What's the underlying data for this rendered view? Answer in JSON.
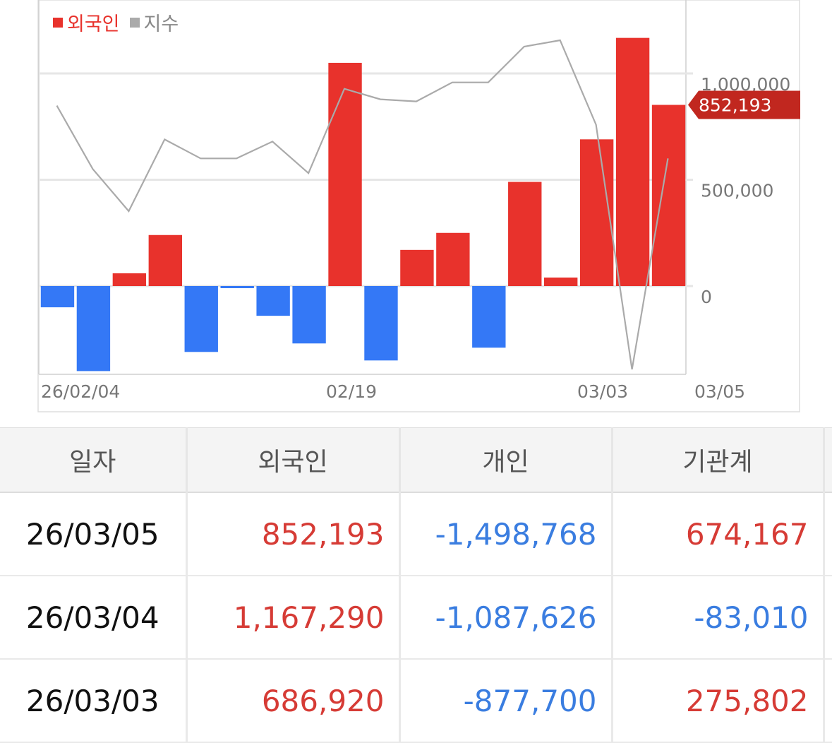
{
  "chart_data": {
    "type": "bar",
    "legend": [
      {
        "label": "외국인",
        "color": "#e8322c"
      },
      {
        "label": "지수",
        "color": "#aaaaaa"
      }
    ],
    "x_tick_labels": [
      "26/02/04",
      "02/19",
      "03/03",
      "03/05"
    ],
    "y_ticks": [
      {
        "value": 1000000,
        "label": "1,000,000"
      },
      {
        "value": 500000,
        "label": "500,000"
      },
      {
        "value": 0,
        "label": "0"
      }
    ],
    "ylim": [
      -420000,
      1340000
    ],
    "positive_color": "#e8322c",
    "negative_color": "#3478f6",
    "series": [
      {
        "name": "외국인",
        "values": [
          -100000,
          -400000,
          60000,
          240000,
          -310000,
          -10000,
          -140000,
          -270000,
          1050000,
          -350000,
          170000,
          250000,
          -290000,
          490000,
          40000,
          690000,
          1167290,
          852193
        ]
      },
      {
        "name": "지수",
        "values": [
          85,
          55,
          35,
          69,
          60,
          60,
          68,
          53,
          93,
          88,
          87,
          96,
          96,
          113,
          116,
          76,
          -40,
          60
        ]
      }
    ],
    "last_value_label": "852,193"
  },
  "table": {
    "headers": [
      "일자",
      "외국인",
      "개인",
      "기관계"
    ],
    "rows": [
      {
        "date": "26/03/05",
        "foreign": "852,193",
        "individual": "-1,498,768",
        "institution": "674,167"
      },
      {
        "date": "26/03/04",
        "foreign": "1,167,290",
        "individual": "-1,087,626",
        "institution": "-83,010"
      },
      {
        "date": "26/03/03",
        "foreign": "686,920",
        "individual": "-877,700",
        "institution": "275,802"
      }
    ]
  }
}
